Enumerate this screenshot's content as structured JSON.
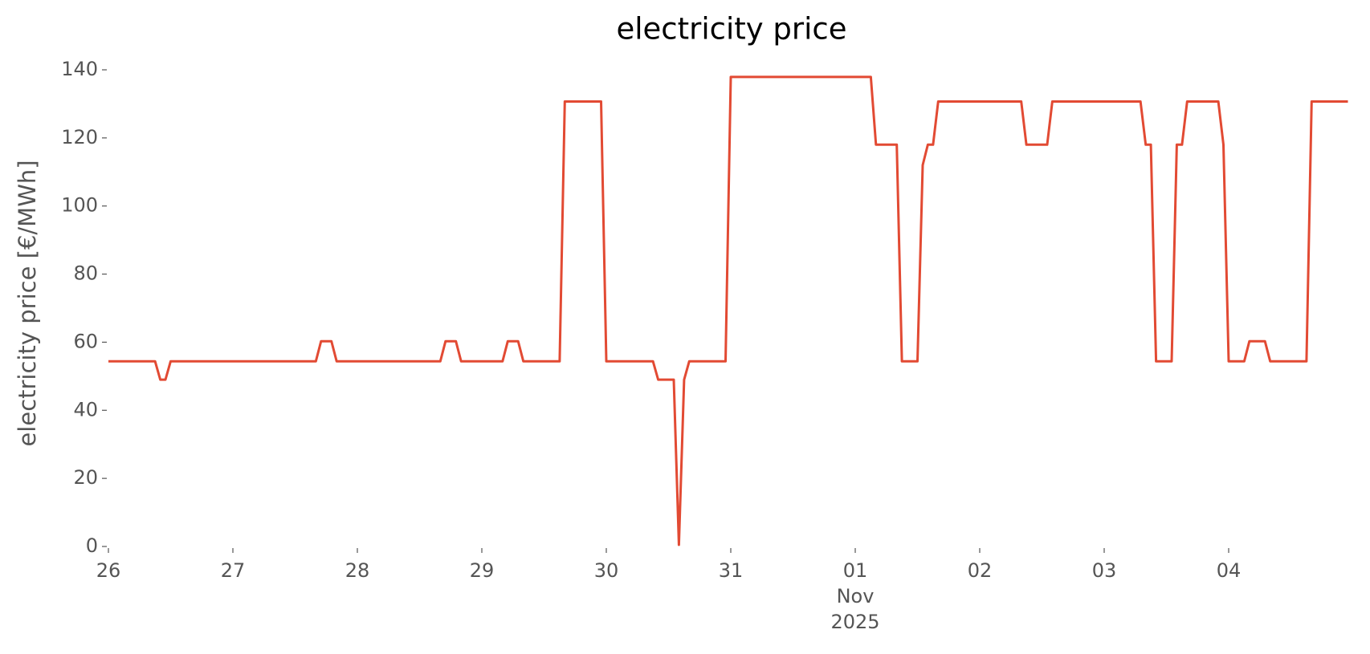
{
  "chart_data": {
    "type": "line",
    "title": "electricity price",
    "ylabel": "electricity price [€/MWh]",
    "x": [
      0,
      9,
      10,
      11,
      12,
      40,
      41,
      43,
      44,
      64,
      65,
      67,
      68,
      76,
      77,
      79,
      80,
      87,
      88,
      95,
      96,
      105,
      106,
      109,
      110,
      111,
      112,
      119,
      120,
      147,
      148,
      152,
      153,
      156,
      157,
      158,
      159,
      160,
      176,
      177,
      181,
      182,
      199,
      200,
      201,
      202,
      205,
      206,
      207,
      208,
      214,
      215,
      216,
      219,
      220,
      223,
      224,
      231,
      232,
      239
    ],
    "values": [
      54.4,
      54.4,
      49,
      49,
      54.4,
      54.4,
      60.3,
      60.3,
      54.4,
      54.4,
      60.3,
      60.3,
      54.4,
      54.4,
      60.3,
      60.3,
      54.4,
      54.4,
      130.7,
      130.7,
      54.4,
      54.4,
      49,
      49,
      0.5,
      49,
      54.4,
      54.4,
      137.9,
      137.9,
      118,
      118,
      54.4,
      54.4,
      112,
      118,
      118,
      130.7,
      130.7,
      118,
      118,
      130.7,
      130.7,
      118,
      118,
      54.4,
      54.4,
      118,
      118,
      130.7,
      130.7,
      118,
      54.4,
      54.4,
      60.3,
      60.3,
      54.4,
      54.4,
      130.7,
      130.7
    ],
    "color": "#e24a33",
    "xlim": [
      0,
      240
    ],
    "xticks": [
      {
        "value": 0,
        "label": "26"
      },
      {
        "value": 24,
        "label": "27"
      },
      {
        "value": 48,
        "label": "28"
      },
      {
        "value": 72,
        "label": "29"
      },
      {
        "value": 96,
        "label": "30"
      },
      {
        "value": 120,
        "label": "31"
      },
      {
        "value": 144,
        "label": "01\nNov\n2025"
      },
      {
        "value": 168,
        "label": "02"
      },
      {
        "value": 192,
        "label": "03"
      },
      {
        "value": 216,
        "label": "04"
      }
    ],
    "ylim": [
      0,
      140
    ],
    "yticks": [
      0,
      20,
      40,
      60,
      80,
      100,
      120,
      140
    ]
  }
}
